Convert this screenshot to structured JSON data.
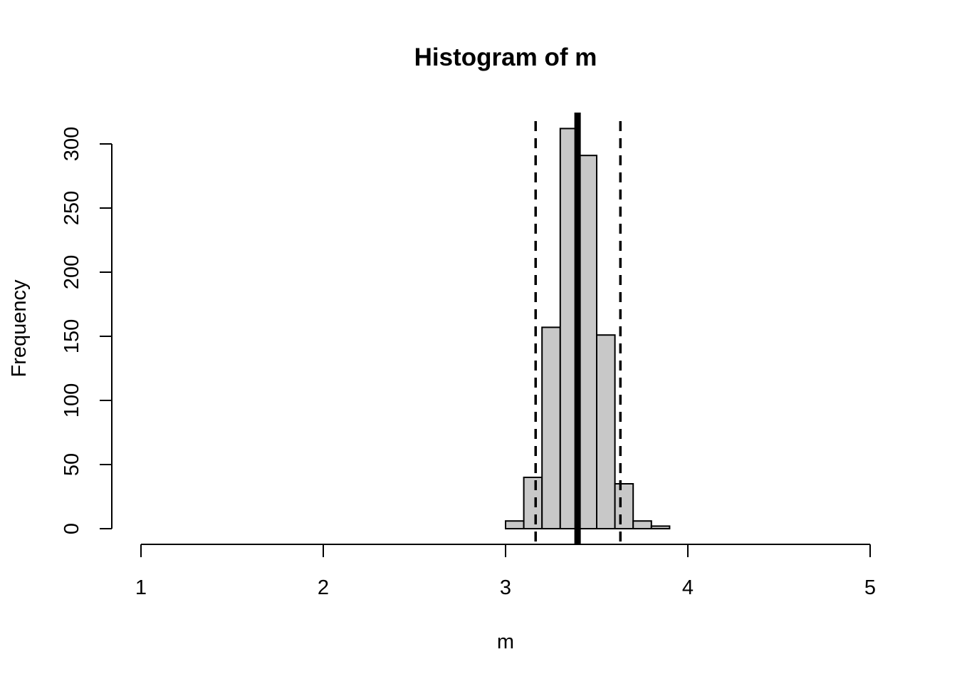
{
  "chart_data": {
    "type": "bar",
    "title": "Histogram of m",
    "xlabel": "m",
    "ylabel": "Frequency",
    "xlim": [
      1,
      5
    ],
    "x_ticks": [
      1,
      2,
      3,
      4,
      5
    ],
    "y_ticks": [
      0,
      50,
      100,
      150,
      200,
      250,
      300
    ],
    "bins": [
      {
        "x0": 3.0,
        "x1": 3.1,
        "count": 6
      },
      {
        "x0": 3.1,
        "x1": 3.2,
        "count": 40
      },
      {
        "x0": 3.2,
        "x1": 3.3,
        "count": 157
      },
      {
        "x0": 3.3,
        "x1": 3.4,
        "count": 312
      },
      {
        "x0": 3.4,
        "x1": 3.5,
        "count": 291
      },
      {
        "x0": 3.5,
        "x1": 3.6,
        "count": 151
      },
      {
        "x0": 3.6,
        "x1": 3.7,
        "count": 35
      },
      {
        "x0": 3.7,
        "x1": 3.8,
        "count": 6
      },
      {
        "x0": 3.8,
        "x1": 3.9,
        "count": 2
      }
    ],
    "bar_color": "#c8c8c8",
    "border_color": "#000000",
    "mean_line": {
      "x": 3.395,
      "style": "solid"
    },
    "interval_lines": [
      {
        "x": 3.165,
        "style": "dashed"
      },
      {
        "x": 3.63,
        "style": "dashed"
      }
    ],
    "grid": false,
    "legend": "none"
  }
}
